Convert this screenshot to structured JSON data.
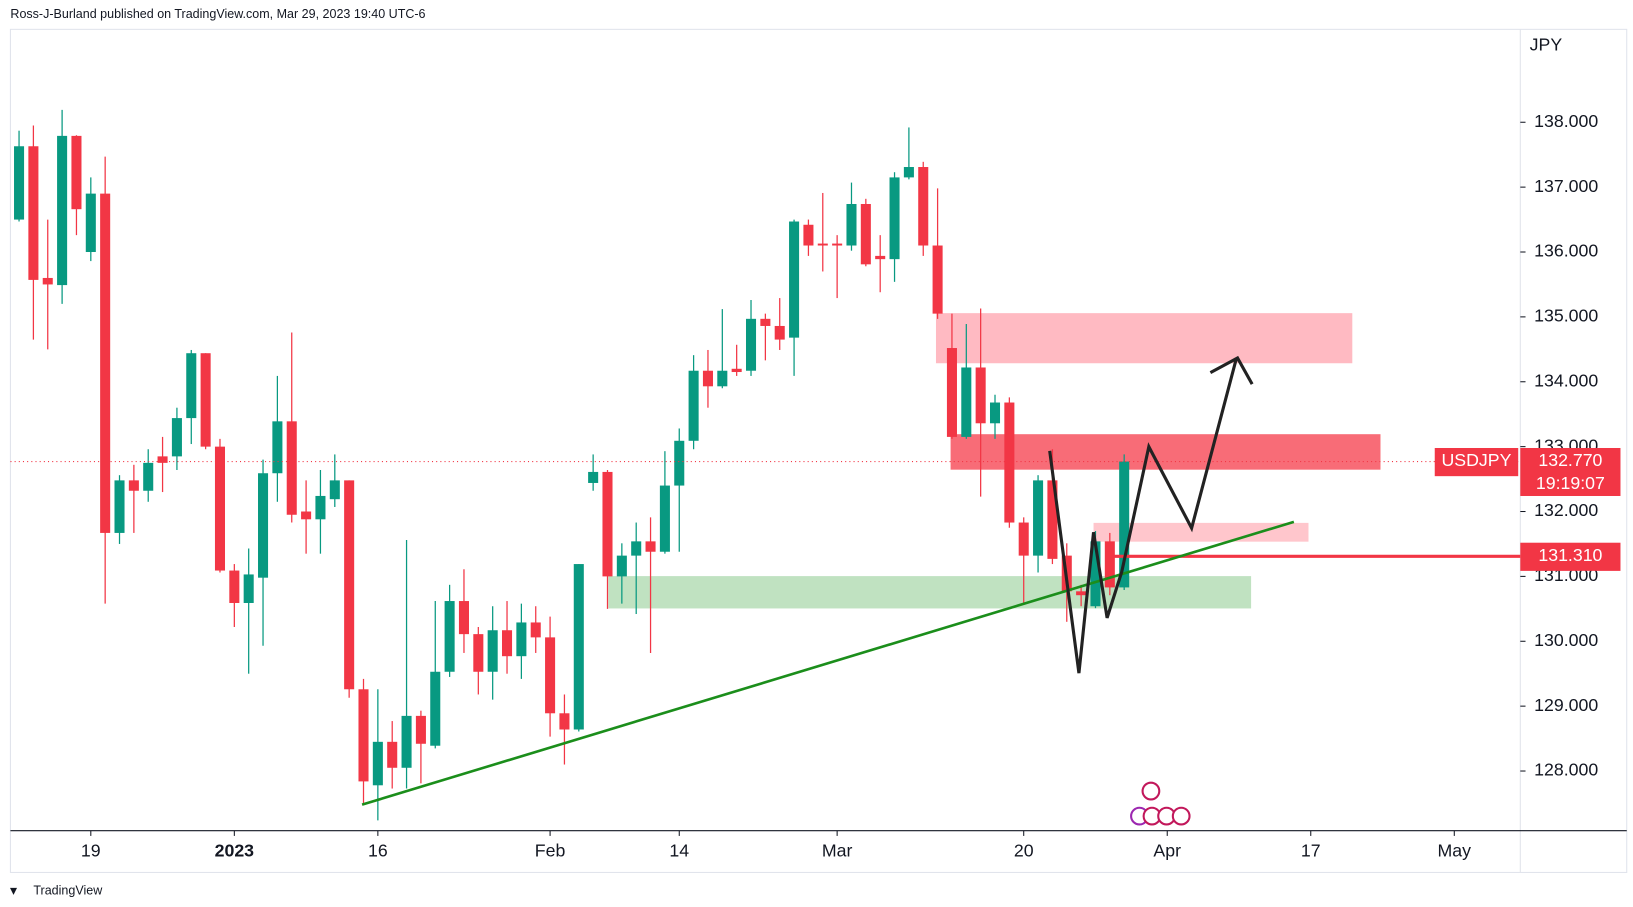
{
  "header": "Ross-J-Burland published on TradingView.com, Mar 29, 2023 19:40 UTC-6",
  "footer": "TradingView",
  "chart_data": {
    "type": "candlestick",
    "y_axis_label": "JPY",
    "up_color": "#089981",
    "down_color": "#f23645",
    "x": [
      -5,
      -4,
      -3,
      -2,
      -1,
      0,
      1,
      2,
      3,
      4,
      5,
      6,
      7,
      8,
      9,
      10,
      11,
      12,
      13,
      14,
      15,
      16,
      17,
      18,
      19,
      20,
      21,
      22,
      23,
      24,
      25,
      26,
      27,
      28,
      29,
      30,
      31,
      32,
      33,
      34,
      35,
      36,
      37,
      38,
      39,
      40,
      41,
      42,
      43,
      44,
      45,
      46,
      47,
      48,
      49,
      50,
      51,
      52,
      53,
      54,
      55,
      56,
      57,
      58,
      59,
      60,
      61,
      62,
      63,
      64,
      65,
      66,
      67,
      68,
      69,
      70,
      71,
      72
    ],
    "open": [
      136.5,
      137.63,
      135.6,
      135.49,
      137.79,
      136.0,
      136.9,
      131.67,
      132.48,
      132.32,
      132.85,
      132.85,
      133.44,
      134.44,
      133.0,
      131.09,
      130.59,
      130.98,
      132.59,
      133.39,
      132.0,
      131.88,
      132.19,
      132.48,
      129.26,
      127.78,
      128.45,
      128.05,
      128.85,
      128.39,
      129.53,
      130.62,
      130.11,
      129.53,
      130.17,
      129.77,
      130.29,
      130.06,
      128.89,
      128.64,
      132.44,
      132.61,
      131.0,
      131.32,
      131.54,
      131.38,
      132.4,
      133.09,
      134.17,
      133.93,
      134.2,
      134.17,
      134.97,
      134.86,
      134.68,
      136.42,
      136.13,
      136.13,
      136.1,
      136.74,
      135.94,
      135.89,
      137.15,
      137.31,
      136.1,
      134.52,
      133.15,
      134.22,
      133.36,
      133.68,
      131.83,
      131.32,
      132.48,
      131.32,
      130.77,
      130.54,
      131.54,
      130.83
    ],
    "high": [
      137.87,
      137.95,
      136.5,
      138.19,
      137.8,
      137.15,
      137.47,
      132.56,
      132.72,
      132.96,
      133.15,
      133.6,
      134.49,
      134.44,
      133.12,
      131.19,
      131.43,
      132.8,
      134.09,
      134.76,
      132.48,
      132.64,
      132.88,
      132.48,
      129.42,
      129.26,
      128.77,
      131.56,
      128.93,
      130.62,
      130.87,
      131.11,
      130.22,
      130.54,
      130.62,
      130.58,
      130.54,
      130.38,
      129.18,
      131.19,
      132.88,
      132.64,
      131.51,
      131.83,
      131.91,
      132.93,
      133.28,
      134.41,
      134.49,
      135.12,
      134.57,
      135.26,
      135.05,
      135.29,
      136.5,
      136.5,
      136.91,
      136.26,
      137.07,
      136.82,
      136.26,
      137.23,
      137.92,
      137.39,
      136.98,
      135.05,
      134.89,
      135.13,
      133.8,
      133.76,
      131.91,
      132.56,
      132.96,
      131.51,
      130.87,
      131.7,
      131.67,
      132.88
    ],
    "low": [
      136.47,
      134.65,
      134.5,
      135.2,
      136.26,
      135.86,
      130.58,
      131.5,
      131.67,
      132.15,
      132.3,
      132.64,
      133.04,
      132.96,
      131.06,
      130.22,
      129.5,
      129.93,
      132.15,
      131.83,
      131.35,
      131.35,
      132.07,
      129.13,
      127.48,
      127.24,
      127.73,
      127.73,
      127.81,
      128.35,
      129.45,
      129.82,
      129.18,
      129.1,
      129.5,
      129.42,
      129.82,
      128.53,
      128.1,
      128.61,
      132.32,
      130.5,
      130.58,
      130.42,
      129.82,
      131.35,
      131.38,
      132.96,
      133.6,
      133.9,
      134.09,
      134.09,
      134.33,
      134.49,
      134.09,
      135.94,
      135.7,
      135.29,
      136.02,
      135.78,
      135.38,
      135.54,
      137.12,
      135.94,
      134.97,
      133.12,
      133.12,
      132.23,
      133.12,
      131.75,
      130.58,
      131.06,
      131.19,
      130.3,
      130.54,
      130.51,
      130.71,
      130.79
    ],
    "close": [
      137.63,
      135.57,
      135.5,
      137.79,
      136.66,
      136.9,
      131.67,
      132.48,
      132.32,
      132.75,
      132.75,
      133.44,
      134.44,
      133.0,
      131.09,
      130.59,
      131.03,
      132.59,
      133.39,
      131.95,
      131.88,
      132.24,
      132.48,
      129.26,
      127.84,
      128.45,
      128.05,
      128.85,
      128.42,
      129.53,
      130.62,
      130.11,
      129.53,
      130.17,
      129.77,
      130.29,
      130.06,
      128.89,
      128.64,
      131.19,
      132.61,
      131.0,
      131.32,
      131.54,
      131.38,
      132.4,
      133.09,
      134.17,
      133.93,
      134.17,
      134.15,
      134.97,
      134.86,
      134.65,
      136.47,
      136.1,
      136.1,
      136.1,
      136.74,
      135.81,
      135.89,
      137.15,
      137.31,
      136.1,
      135.05,
      133.15,
      134.22,
      133.36,
      133.68,
      131.83,
      131.32,
      132.48,
      131.27,
      130.77,
      130.71,
      131.54,
      130.83,
      132.77
    ],
    "xlim": [
      -5.6,
      99.6
    ],
    "xticks": [
      {
        "value": 0,
        "label": "19"
      },
      {
        "value": 10,
        "label": "2023"
      },
      {
        "value": 20,
        "label": "16"
      },
      {
        "value": 32,
        "label": "Feb"
      },
      {
        "value": 41,
        "label": "14"
      },
      {
        "value": 52,
        "label": "Mar"
      },
      {
        "value": 65,
        "label": "20"
      },
      {
        "value": 75,
        "label": "Apr"
      },
      {
        "value": 85,
        "label": "17"
      },
      {
        "value": 95,
        "label": "May"
      }
    ],
    "ylim": [
      127.08,
      139.4
    ],
    "yticks": [
      {
        "value": 128,
        "label": "128.000"
      },
      {
        "value": 129,
        "label": "129.000"
      },
      {
        "value": 130,
        "label": "130.000"
      },
      {
        "value": 131,
        "label": "131.000"
      },
      {
        "value": 132,
        "label": "132.000"
      },
      {
        "value": 133,
        "label": "133.000"
      },
      {
        "value": 134,
        "label": "134.000"
      },
      {
        "value": 135,
        "label": "135.000"
      },
      {
        "value": 136,
        "label": "136.000"
      },
      {
        "value": 137,
        "label": "137.000"
      },
      {
        "value": 138,
        "label": "138.000"
      }
    ],
    "price_lines": [
      {
        "value": 132.77,
        "label": "132.770",
        "name": "USDJPY",
        "countdown": "19:19:07",
        "color": "#f23645"
      },
      {
        "value": 131.31,
        "label": "131.310",
        "color": "#f23645"
      }
    ]
  }
}
